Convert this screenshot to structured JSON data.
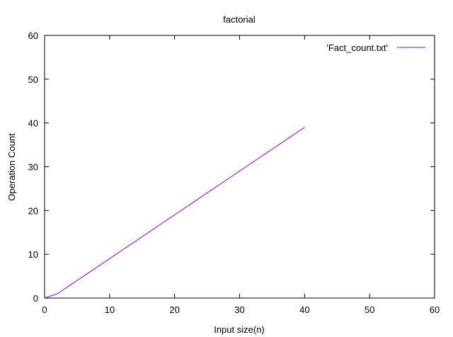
{
  "chart_data": {
    "type": "line",
    "title": "factorial",
    "xlabel": "Input size(n)",
    "ylabel": "Operation Count",
    "xlim": [
      0,
      60
    ],
    "ylim": [
      0,
      60
    ],
    "xticks": [
      0,
      10,
      20,
      30,
      40,
      50,
      60
    ],
    "yticks": [
      0,
      10,
      20,
      30,
      40,
      50,
      60
    ],
    "grid": false,
    "legend_position": "top-right",
    "series": [
      {
        "name": "'Fact_count.txt'",
        "color": "#9400d3",
        "x": [
          0,
          1,
          2,
          3,
          4,
          5,
          6,
          7,
          8,
          9,
          10,
          11,
          12,
          13,
          14,
          15,
          16,
          17,
          18,
          19,
          20,
          21,
          22,
          23,
          24,
          25,
          26,
          27,
          28,
          29,
          30,
          31,
          32,
          33,
          34,
          35,
          36,
          37,
          38,
          39,
          40
        ],
        "y": [
          0,
          0.5,
          1,
          2,
          3,
          4,
          5,
          6,
          7,
          8,
          9,
          10,
          11,
          12,
          13,
          14,
          15,
          16,
          17,
          18,
          19,
          20,
          21,
          22,
          23,
          24,
          25,
          26,
          27,
          28,
          29,
          30,
          31,
          32,
          33,
          34,
          35,
          36,
          37,
          38,
          39
        ]
      }
    ]
  }
}
